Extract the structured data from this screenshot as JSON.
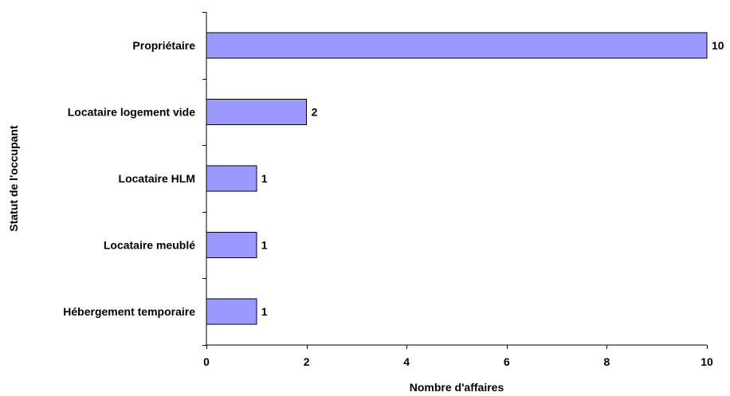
{
  "chart_data": {
    "type": "bar",
    "orientation": "horizontal",
    "categories": [
      "Propriétaire",
      "Locataire logement vide",
      "Locataire HLM",
      "Locataire meublé",
      "Hébergement temporaire"
    ],
    "values": [
      10,
      2,
      1,
      1,
      1
    ],
    "data_labels": [
      "10",
      "2",
      "1",
      "1",
      "1"
    ],
    "xlabel": "Nombre d'affaires",
    "ylabel": "Statut de l'occupant",
    "xlim": [
      0,
      10
    ],
    "x_ticks": [
      0,
      2,
      4,
      6,
      8,
      10
    ],
    "x_tick_labels": [
      "0",
      "2",
      "4",
      "6",
      "8",
      "10"
    ],
    "grid": false,
    "legend": "none",
    "bar_color": "#9999ff",
    "bar_border_color": "#000000"
  }
}
